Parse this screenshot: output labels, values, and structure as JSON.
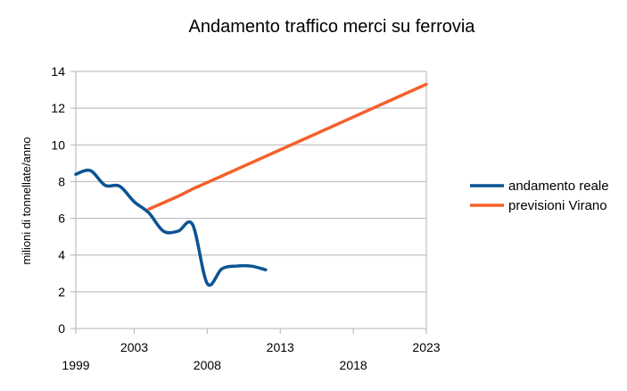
{
  "chart_data": {
    "type": "line",
    "title": "Andamento traffico merci su ferrovia",
    "ylabel": "milioni di tonnellate/anno",
    "xlabel": "",
    "xlim": [
      1999,
      2023
    ],
    "ylim": [
      0,
      14
    ],
    "y_ticks": [
      0,
      2,
      4,
      6,
      8,
      10,
      12,
      14
    ],
    "x_ticks": [
      {
        "value": 1999,
        "label": "1999",
        "row": "lower"
      },
      {
        "value": 2003,
        "label": "2003",
        "row": "upper"
      },
      {
        "value": 2008,
        "label": "2008",
        "row": "lower"
      },
      {
        "value": 2013,
        "label": "2013",
        "row": "upper"
      },
      {
        "value": 2018,
        "label": "2018",
        "row": "lower"
      },
      {
        "value": 2023,
        "label": "2023",
        "row": "upper"
      }
    ],
    "grid": "horizontal",
    "legend_position": "right",
    "series": [
      {
        "name": "andamento reale",
        "color": "#0b5394",
        "smooth": true,
        "points": [
          [
            1999,
            8.4
          ],
          [
            2000,
            8.6
          ],
          [
            2001,
            7.8
          ],
          [
            2002,
            7.75
          ],
          [
            2003,
            6.9
          ],
          [
            2004,
            6.3
          ],
          [
            2005,
            5.3
          ],
          [
            2006,
            5.3
          ],
          [
            2007,
            5.65
          ],
          [
            2008,
            2.45
          ],
          [
            2009,
            3.25
          ],
          [
            2010,
            3.4
          ],
          [
            2011,
            3.4
          ],
          [
            2012,
            3.2
          ]
        ]
      },
      {
        "name": "previsioni Virano",
        "color": "#f4602a",
        "smooth": false,
        "points": [
          [
            2004,
            6.5
          ],
          [
            2005,
            6.85
          ],
          [
            2006,
            7.2
          ],
          [
            2007,
            7.6
          ],
          [
            2008,
            7.95
          ],
          [
            2023,
            13.3
          ]
        ]
      }
    ]
  }
}
